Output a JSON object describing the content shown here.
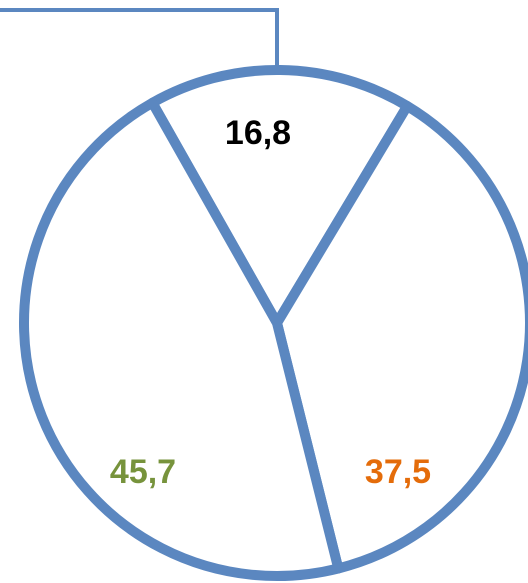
{
  "chart_data": {
    "type": "pie",
    "categories": [
      null,
      null,
      null
    ],
    "values": [
      16.8,
      37.5,
      45.7
    ],
    "value_labels": [
      "16,8",
      "37,5",
      "45,7"
    ],
    "label_colors": [
      "#000000",
      "#e46c0a",
      "#77933c"
    ],
    "color": "#5b87c0"
  }
}
